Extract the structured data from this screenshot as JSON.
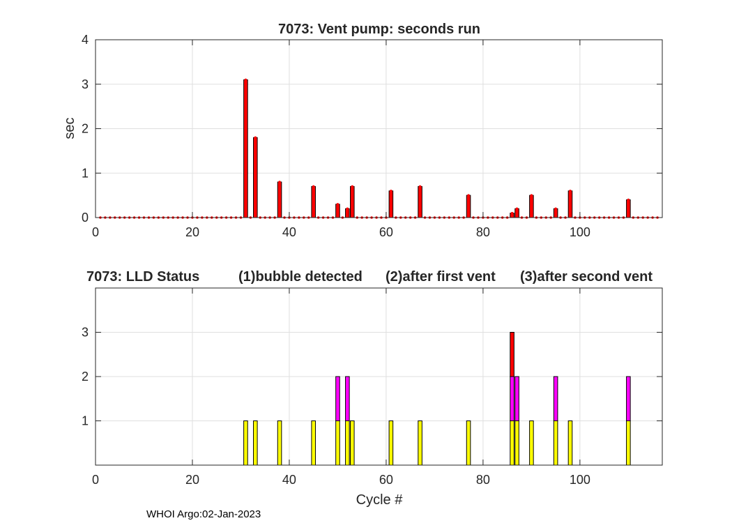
{
  "footer": "WHOI Argo:02-Jan-2023",
  "chart_data": [
    {
      "type": "bar",
      "title": "7073: Vent pump: seconds run",
      "xlabel": "",
      "ylabel": "sec",
      "xlim": [
        0,
        117
      ],
      "ylim": [
        0,
        4
      ],
      "xticks": [
        0,
        20,
        40,
        60,
        80,
        100
      ],
      "yticks": [
        0,
        1,
        2,
        3,
        4
      ],
      "grid": true,
      "color": "#ff0000",
      "cycles_count": 116,
      "bars": [
        {
          "x": 31,
          "value": 3.1
        },
        {
          "x": 33,
          "value": 1.8
        },
        {
          "x": 38,
          "value": 0.8
        },
        {
          "x": 45,
          "value": 0.7
        },
        {
          "x": 50,
          "value": 0.3
        },
        {
          "x": 52,
          "value": 0.2
        },
        {
          "x": 53,
          "value": 0.7
        },
        {
          "x": 61,
          "value": 0.6
        },
        {
          "x": 67,
          "value": 0.7
        },
        {
          "x": 77,
          "value": 0.5
        },
        {
          "x": 86,
          "value": 0.1
        },
        {
          "x": 87,
          "value": 0.2
        },
        {
          "x": 90,
          "value": 0.5
        },
        {
          "x": 95,
          "value": 0.2
        },
        {
          "x": 98,
          "value": 0.6
        },
        {
          "x": 110,
          "value": 0.4
        }
      ]
    },
    {
      "type": "bar",
      "title_parts": [
        "7073: LLD Status",
        "(1)bubble detected",
        "(2)after first vent",
        "(3)after second vent"
      ],
      "xlabel": "Cycle #",
      "ylabel": "",
      "xlim": [
        0,
        117
      ],
      "ylim": [
        0,
        4
      ],
      "xticks": [
        0,
        20,
        40,
        60,
        80,
        100
      ],
      "yticks": [
        1,
        2,
        3
      ],
      "grid": true,
      "colors": {
        "1": "#ffff00",
        "2": "#ff00ff",
        "3": "#ff0000"
      },
      "bars": [
        {
          "x": 31,
          "value": 1
        },
        {
          "x": 33,
          "value": 1
        },
        {
          "x": 38,
          "value": 1
        },
        {
          "x": 45,
          "value": 1
        },
        {
          "x": 50,
          "value": 2
        },
        {
          "x": 52,
          "value": 2
        },
        {
          "x": 53,
          "value": 1
        },
        {
          "x": 61,
          "value": 1
        },
        {
          "x": 67,
          "value": 1
        },
        {
          "x": 77,
          "value": 1
        },
        {
          "x": 86,
          "value": 3
        },
        {
          "x": 87,
          "value": 2
        },
        {
          "x": 90,
          "value": 1
        },
        {
          "x": 95,
          "value": 2
        },
        {
          "x": 98,
          "value": 1
        },
        {
          "x": 110,
          "value": 2
        }
      ]
    }
  ]
}
